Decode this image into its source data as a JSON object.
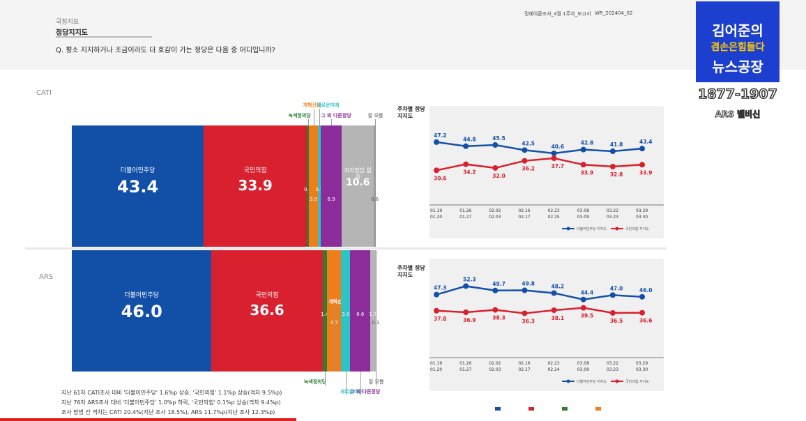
{
  "header": {
    "section_label": "국정지표",
    "section_title": "정당지지도",
    "question": "Q. 평소 지지하거나 조금이라도 더 호감이 가는 정당은 다음 중 어디입니까?",
    "report_tag": "정례여론조사_4월 1주차_보고서",
    "report_code": "WR_202404_02"
  },
  "logo": {
    "line1": "김어준의",
    "line2": "겸손은힘들다",
    "line3": "뉴스공장",
    "years": "1877-1907",
    "ars": "ARS 벨비신"
  },
  "colors": {
    "minjoo": "#1250a8",
    "ppp": "#d8202e",
    "green": "#2e7d32",
    "reform": "#ef7d1a",
    "newfuture": "#2ec4c6",
    "other": "#8b2c9a",
    "none": "#b5b5b5",
    "dk": "#9a9a9a"
  },
  "chart_data": [
    {
      "type": "bar",
      "method": "CATI",
      "segments": [
        {
          "name": "더불어민주당",
          "value": 43.4,
          "color": "#1250a8"
        },
        {
          "name": "국민의힘",
          "value": 33.9,
          "color": "#d8202e"
        },
        {
          "name": "녹색정의당",
          "value": 0.7,
          "color": "#2e7d32"
        },
        {
          "name": "개혁신당",
          "value": 3.0,
          "color": "#ef7d1a"
        },
        {
          "name": "새로운미래",
          "value": 0.9,
          "color": "#2ec4c6"
        },
        {
          "name": "그 외 다른정당",
          "value": 6.9,
          "color": "#8b2c9a"
        },
        {
          "name": "지지정당 없음",
          "value": 10.6,
          "color": "#b5b5b5"
        },
        {
          "name": "잘 모름",
          "value": 0.6,
          "color": "#9a9a9a"
        }
      ]
    },
    {
      "type": "bar",
      "method": "ARS",
      "segments": [
        {
          "name": "더불어민주당",
          "value": 46.0,
          "color": "#1250a8"
        },
        {
          "name": "국민의힘",
          "value": 36.6,
          "color": "#d8202e"
        },
        {
          "name": "녹색정의당",
          "value": 1.4,
          "color": "#2e7d32"
        },
        {
          "name": "개혁신당",
          "value": 4.7,
          "color": "#ef7d1a"
        },
        {
          "name": "새로운미래",
          "value": 3.0,
          "color": "#2ec4c6"
        },
        {
          "name": "그 외 다른정당",
          "value": 6.6,
          "color": "#8b2c9a"
        },
        {
          "name": "지지정당 없음",
          "value": 1.7,
          "color": "#b5b5b5"
        },
        {
          "name": "잘 모름",
          "value": 0.1,
          "color": "#9a9a9a"
        }
      ]
    },
    {
      "type": "line",
      "title": "주차별 정당지지도",
      "method": "CATI",
      "categories": [
        [
          "01.19",
          "01.20"
        ],
        [
          "01.26",
          "01.27"
        ],
        [
          "02.02",
          "02.03"
        ],
        [
          "02.16",
          "02.17"
        ],
        [
          "02.23",
          "02.25"
        ],
        [
          "03.08",
          "03.09"
        ],
        [
          "03.22",
          "03.23"
        ],
        [
          "03.29",
          "03.30"
        ]
      ],
      "series": [
        {
          "name": "더불어민주당 지지도",
          "color": "#1250a8",
          "values": [
            47.2,
            44.8,
            45.5,
            42.5,
            40.6,
            42.8,
            41.8,
            43.4
          ]
        },
        {
          "name": "국민의힘 지지도",
          "color": "#d8202e",
          "values": [
            30.6,
            34.2,
            32.0,
            36.2,
            37.7,
            33.9,
            32.8,
            33.9
          ]
        }
      ]
    },
    {
      "type": "line",
      "title": "주차별 정당지지도",
      "method": "ARS",
      "categories": [
        [
          "01.19",
          "01.20"
        ],
        [
          "01.26",
          "01.27"
        ],
        [
          "02.02",
          "02.03"
        ],
        [
          "02.16",
          "02.17"
        ],
        [
          "02.23",
          "02.24"
        ],
        [
          "03.08",
          "03.09"
        ],
        [
          "03.22",
          "03.23"
        ],
        [
          "03.29",
          "03.30"
        ]
      ],
      "series": [
        {
          "name": "더불어민주당 지지도",
          "color": "#1250a8",
          "values": [
            47.3,
            52.3,
            49.7,
            49.8,
            48.2,
            44.4,
            47.0,
            46.0
          ]
        },
        {
          "name": "국민의힘 지지도",
          "color": "#d8202e",
          "values": [
            37.8,
            36.9,
            38.3,
            36.3,
            38.1,
            39.5,
            36.5,
            36.6
          ]
        }
      ]
    }
  ],
  "notes": [
    "지난 61차 CATI조사 대비 '더불어민주당' 1.6%p 상승, '국민의힘' 1.1%p 상승(격차 9.5%p)",
    "지난 76차 ARS조사 대비 '더불어민주당' 1.0%p 하락, '국민의힘' 0.1%p 상승(격차 9.4%p)",
    "조사 방법 간 격차는 CATI 20.4%(지난 조사 18.5%), ARS 11.7%p(지난 조사 12.3%p)"
  ]
}
